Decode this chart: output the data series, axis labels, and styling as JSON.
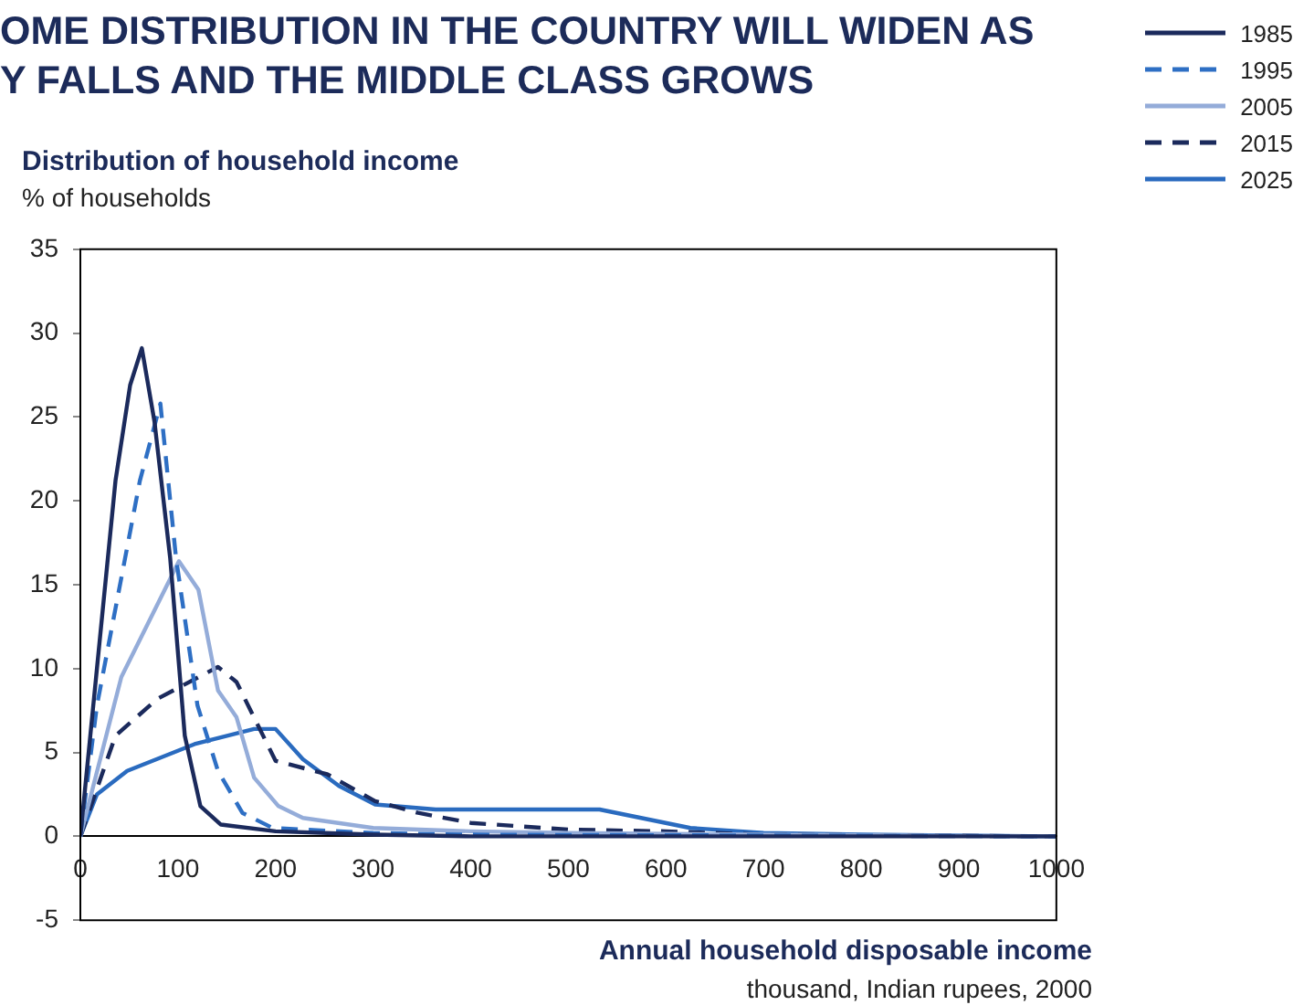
{
  "chart_data": {
    "type": "line",
    "title": "OME DISTRIBUTION IN THE COUNTRY WILL WIDEN AS\nY FALLS AND THE MIDDLE CLASS GROWS",
    "subtitle": "Distribution of household income",
    "ylabel": "% of households",
    "xlabel": "Annual household disposable income",
    "annotations": [
      "thousand, Indian rupees, 2000"
    ],
    "xlim": [
      0,
      1000
    ],
    "xticks": [
      0,
      100,
      200,
      300,
      400,
      500,
      600,
      700,
      800,
      900,
      1000
    ],
    "ylim": [
      -5,
      35
    ],
    "yticks": [
      -5,
      0,
      5,
      10,
      15,
      20,
      25,
      30,
      35
    ],
    "grid": false,
    "legend": "top right",
    "marker": "none",
    "series": [
      {
        "name": "1985",
        "color": "#1b2a5c",
        "line_style": "solid",
        "x": [
          0,
          36,
          51,
          63,
          76,
          92,
          107,
          123,
          144,
          200,
          300,
          400,
          1000
        ],
        "values": [
          0,
          21.2,
          26.9,
          29.1,
          24.7,
          16.6,
          6.0,
          1.8,
          0.7,
          0.3,
          0.1,
          0,
          0
        ]
      },
      {
        "name": "1995",
        "color": "#2e6fc4",
        "line_style": "dashed",
        "x": [
          0,
          17,
          61,
          82,
          98,
          120,
          141,
          166,
          197,
          300,
          400,
          1000
        ],
        "values": [
          0,
          7.8,
          21.2,
          25.8,
          16.6,
          7.8,
          3.9,
          1.4,
          0.5,
          0.2,
          0.1,
          0
        ]
      },
      {
        "name": "2005",
        "color": "#94acd9",
        "line_style": "solid",
        "x": [
          0,
          42,
          101,
          121,
          141,
          160,
          178,
          203,
          228,
          300,
          400,
          500,
          700,
          1000
        ],
        "values": [
          0,
          9.5,
          16.4,
          14.7,
          8.7,
          7.1,
          3.5,
          1.8,
          1.1,
          0.5,
          0.3,
          0.2,
          0.1,
          0
        ]
      },
      {
        "name": "2015",
        "color": "#1b2a5c",
        "line_style": "dashed",
        "x": [
          0,
          36,
          79,
          141,
          160,
          200,
          253,
          302,
          346,
          400,
          500,
          600,
          700,
          1000
        ],
        "values": [
          0,
          6.0,
          8.2,
          10.1,
          9.2,
          4.5,
          3.7,
          2.1,
          1.4,
          0.8,
          0.4,
          0.3,
          0.1,
          0
        ]
      },
      {
        "name": "2025",
        "color": "#2a6bbf",
        "line_style": "solid",
        "x": [
          0,
          17,
          48,
          117,
          178,
          200,
          228,
          265,
          302,
          364,
          532,
          625,
          700,
          800,
          1000
        ],
        "values": [
          0,
          2.5,
          3.9,
          5.5,
          6.4,
          6.4,
          4.6,
          3.0,
          1.9,
          1.6,
          1.6,
          0.5,
          0.2,
          0.1,
          0
        ]
      }
    ]
  }
}
